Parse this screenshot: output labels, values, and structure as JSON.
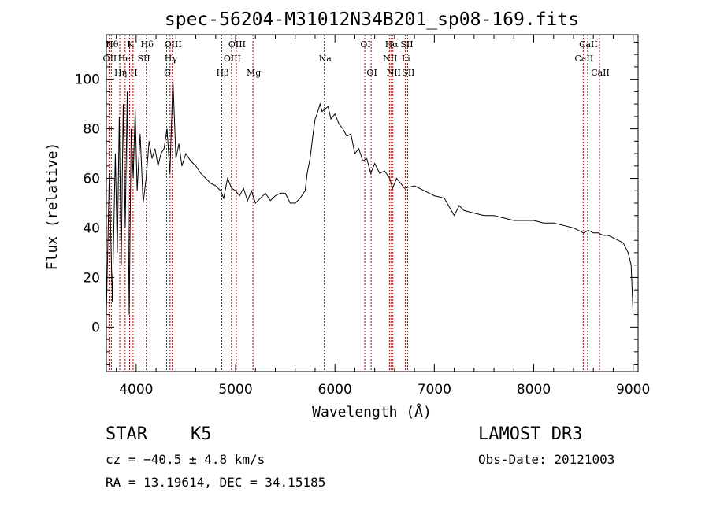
{
  "chart_data": {
    "type": "line",
    "title": "spec-56204-M31012N34B201_sp08-169.fits",
    "xlabel": "Wavelength (Å)",
    "ylabel": "Flux (relative)",
    "xlim": [
      3700,
      9050
    ],
    "ylim": [
      -18,
      118
    ],
    "xticks": [
      4000,
      5000,
      6000,
      7000,
      8000,
      9000
    ],
    "yticks": [
      0,
      20,
      40,
      60,
      80,
      100
    ],
    "xtick_labels": [
      "4000",
      "5000",
      "6000",
      "7000",
      "8000",
      "9000"
    ],
    "ytick_labels": [
      "0",
      "20",
      "40",
      "60",
      "80",
      "100"
    ],
    "series": [
      {
        "name": "flux",
        "x": [
          3700,
          3730,
          3760,
          3790,
          3810,
          3830,
          3850,
          3870,
          3890,
          3910,
          3930,
          3950,
          3970,
          3990,
          4010,
          4040,
          4070,
          4100,
          4130,
          4160,
          4190,
          4220,
          4250,
          4280,
          4310,
          4340,
          4370,
          4400,
          4430,
          4460,
          4500,
          4550,
          4600,
          4650,
          4700,
          4750,
          4800,
          4850,
          4880,
          4920,
          4960,
          5000,
          5040,
          5080,
          5120,
          5160,
          5200,
          5250,
          5300,
          5350,
          5400,
          5450,
          5500,
          5550,
          5600,
          5650,
          5700,
          5720,
          5750,
          5780,
          5800,
          5820,
          5850,
          5870,
          5900,
          5930,
          5960,
          6000,
          6040,
          6080,
          6120,
          6160,
          6200,
          6240,
          6280,
          6320,
          6360,
          6400,
          6450,
          6500,
          6550,
          6580,
          6620,
          6700,
          6800,
          6900,
          7000,
          7100,
          7200,
          7250,
          7300,
          7400,
          7500,
          7600,
          7700,
          7800,
          7900,
          8000,
          8100,
          8200,
          8300,
          8400,
          8450,
          8500,
          8550,
          8600,
          8650,
          8700,
          8750,
          8800,
          8850,
          8900,
          8950,
          8980,
          9000
        ],
        "y": [
          5,
          62,
          10,
          70,
          30,
          85,
          25,
          90,
          40,
          95,
          5,
          80,
          60,
          88,
          55,
          78,
          50,
          60,
          75,
          68,
          72,
          65,
          70,
          72,
          80,
          62,
          100,
          68,
          74,
          65,
          70,
          67,
          65,
          62,
          60,
          58,
          57,
          55,
          52,
          60,
          56,
          55,
          53,
          56,
          51,
          55,
          50,
          52,
          54,
          51,
          53,
          54,
          54,
          50,
          50,
          52,
          55,
          62,
          68,
          78,
          84,
          86,
          90,
          87,
          88,
          89,
          84,
          86,
          82,
          80,
          77,
          78,
          70,
          72,
          67,
          68,
          62,
          66,
          62,
          63,
          60,
          56,
          60,
          56,
          57,
          55,
          53,
          52,
          45,
          49,
          47,
          46,
          45,
          45,
          44,
          43,
          43,
          43,
          42,
          42,
          41,
          40,
          39,
          38,
          39,
          38,
          38,
          37,
          37,
          36,
          35,
          34,
          30,
          25,
          5
        ]
      }
    ],
    "lines": [
      {
        "wave": 3727,
        "label": "OII",
        "row": 2
      },
      {
        "wave": 3750,
        "label": "Hθ",
        "row": 1
      },
      {
        "wave": 3835,
        "label": "Hη",
        "row": 3
      },
      {
        "wave": 3889,
        "label": "HeI",
        "row": 2
      },
      {
        "wave": 3934,
        "label": "K",
        "row": 1
      },
      {
        "wave": 3969,
        "label": "H",
        "row": 3
      },
      {
        "wave": 4069,
        "label": "SII",
        "row": 2
      },
      {
        "wave": 4102,
        "label": "Hδ",
        "row": 1
      },
      {
        "wave": 4306,
        "label": "G",
        "row": 3
      },
      {
        "wave": 4341,
        "label": "Hγ",
        "row": 2
      },
      {
        "wave": 4363,
        "label": "OIII",
        "row": 1
      },
      {
        "wave": 4861,
        "label": "Hβ",
        "row": 3
      },
      {
        "wave": 4959,
        "label": "OIII",
        "row": 2
      },
      {
        "wave": 5007,
        "label": "OIII",
        "row": 1
      },
      {
        "wave": 5175,
        "label": "Mg",
        "row": 3
      },
      {
        "wave": 5893,
        "label": "Na",
        "row": 2
      },
      {
        "wave": 6300,
        "label": "OI",
        "row": 1
      },
      {
        "wave": 6364,
        "label": "OI",
        "row": 3
      },
      {
        "wave": 6548,
        "label": "NII",
        "row": 2
      },
      {
        "wave": 6563,
        "label": "Hα",
        "row": 1
      },
      {
        "wave": 6583,
        "label": "NII",
        "row": 3
      },
      {
        "wave": 6707,
        "label": "Li",
        "row": 2
      },
      {
        "wave": 6716,
        "label": "SII",
        "row": 1
      },
      {
        "wave": 6731,
        "label": "SII",
        "row": 3
      },
      {
        "wave": 8498,
        "label": "CaII",
        "row": 2
      },
      {
        "wave": 8542,
        "label": "CaII",
        "row": 1
      },
      {
        "wave": 8662,
        "label": "CaII",
        "row": 3
      }
    ]
  },
  "info": {
    "object_class": "STAR",
    "subclass": "K5",
    "survey": "LAMOST DR3",
    "cz": "cz = −40.5 ± 4.8 km/s",
    "obs_date": "Obs-Date: 20121003",
    "coords": "RA =  13.19614, DEC =  34.15185"
  },
  "colors": {
    "line_marker": "#b00000",
    "spectrum": "#000000",
    "axes": "#000000"
  }
}
